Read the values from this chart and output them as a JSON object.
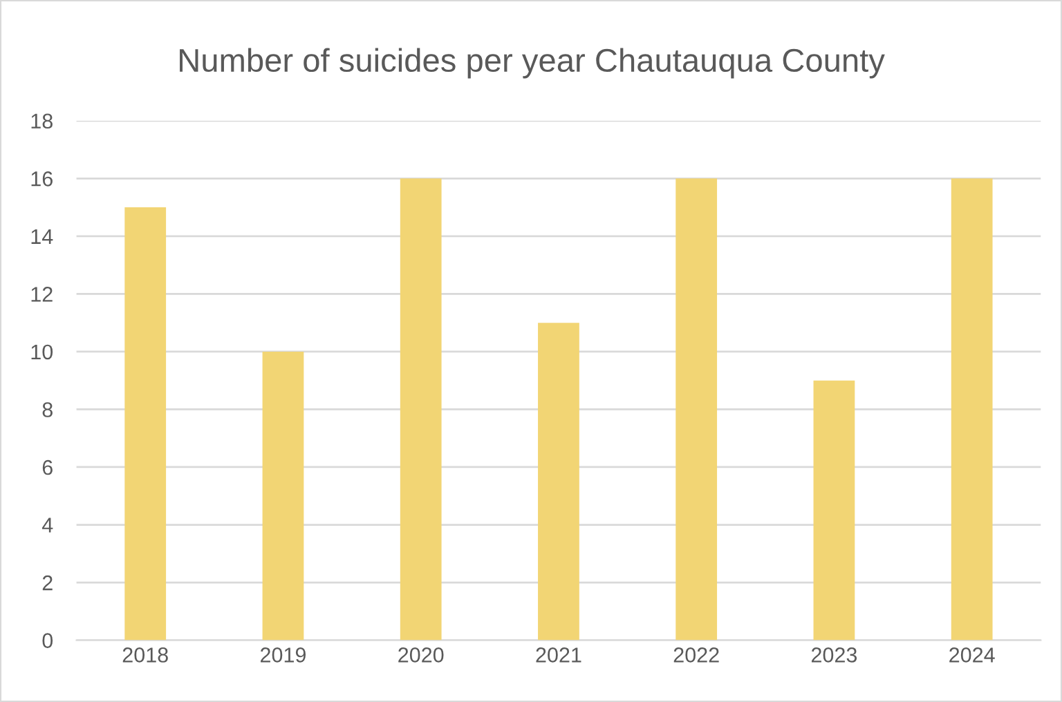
{
  "chart_data": {
    "type": "bar",
    "title": "Number of suicides per year Chautauqua County",
    "categories": [
      "2018",
      "2019",
      "2020",
      "2021",
      "2022",
      "2023",
      "2024"
    ],
    "values": [
      15,
      10,
      16,
      11,
      16,
      9,
      16
    ],
    "color": "#f2d574",
    "ylim": [
      0,
      18
    ],
    "yticks": [
      0,
      2,
      4,
      6,
      8,
      10,
      12,
      14,
      16,
      18
    ],
    "grid": "y",
    "legend": false
  }
}
